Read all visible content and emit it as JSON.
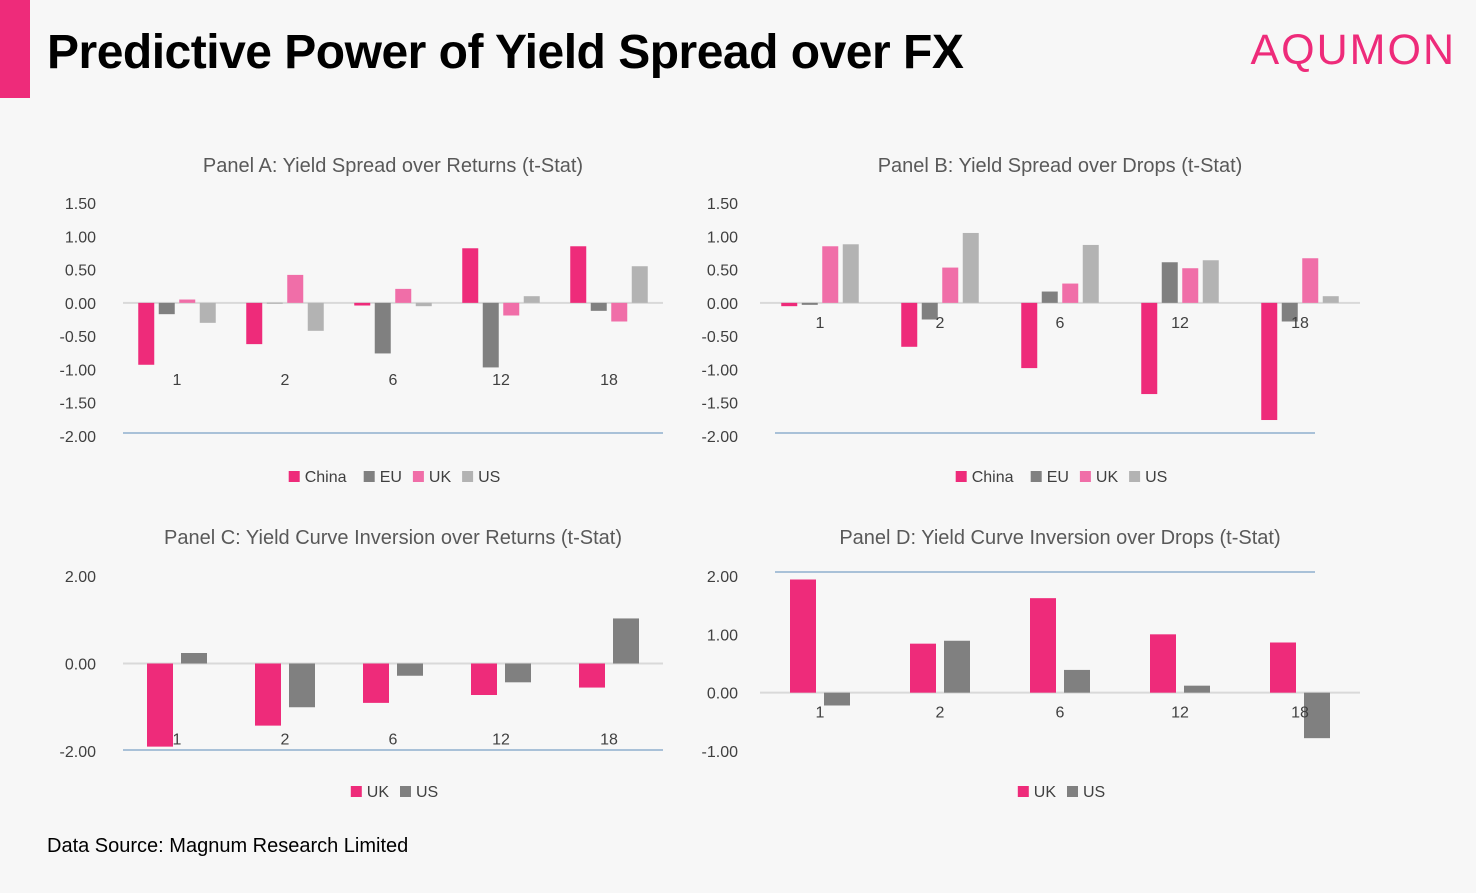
{
  "header": {
    "title": "Predictive Power of Yield Spread over FX",
    "brand": "AQUMON"
  },
  "footer": {
    "source": "Data Source: Magnum Research Limited"
  },
  "colors": {
    "accent": "#ee2b7a",
    "China": "#ee2b7a",
    "EU": "#808080",
    "UK": "#f06ea8",
    "US": "#b3b3b3",
    "UK_inversion": "#ee2b7a",
    "US_inversion": "#808080",
    "axis": "#d9d9d9",
    "bottom_line": "#5b8bb8"
  },
  "chart_data": [
    {
      "type": "bar",
      "title": "Panel A: Yield Spread over Returns (t-Stat)",
      "categories": [
        "1",
        "2",
        "6",
        "12",
        "18"
      ],
      "ylim": [
        -2.0,
        1.5
      ],
      "yticks": [
        "1.50",
        "1.00",
        "0.50",
        "0.00",
        "-0.50",
        "-1.00",
        "-1.50",
        "-2.00"
      ],
      "legend_position": "bottom",
      "series": [
        {
          "name": "China",
          "values": [
            -0.93,
            -0.62,
            -0.04,
            0.82,
            0.85
          ]
        },
        {
          "name": "EU",
          "values": [
            -0.17,
            0.0,
            -0.76,
            -0.97,
            -0.12
          ]
        },
        {
          "name": "UK",
          "values": [
            0.05,
            0.42,
            0.21,
            -0.19,
            -0.28
          ]
        },
        {
          "name": "US",
          "values": [
            -0.3,
            -0.42,
            -0.05,
            0.1,
            0.55
          ]
        }
      ]
    },
    {
      "type": "bar",
      "title": "Panel B: Yield Spread over Drops (t-Stat)",
      "categories": [
        "1",
        "2",
        "6",
        "12",
        "18"
      ],
      "ylim": [
        -2.0,
        1.5
      ],
      "yticks": [
        "1.50",
        "1.00",
        "0.50",
        "0.00",
        "-0.50",
        "-1.00",
        "-1.50",
        "-2.00"
      ],
      "legend_position": "bottom",
      "series": [
        {
          "name": "China",
          "values": [
            -0.05,
            -0.66,
            -0.98,
            -1.37,
            -1.76
          ]
        },
        {
          "name": "EU",
          "values": [
            -0.03,
            -0.25,
            0.17,
            0.61,
            -0.28
          ]
        },
        {
          "name": "UK",
          "values": [
            0.85,
            0.53,
            0.29,
            0.52,
            0.67
          ]
        },
        {
          "name": "US",
          "values": [
            0.88,
            1.05,
            0.87,
            0.64,
            0.1
          ]
        }
      ]
    },
    {
      "type": "bar",
      "title": "Panel C: Yield Curve Inversion over Returns (t-Stat)",
      "categories": [
        "1",
        "2",
        "6",
        "12",
        "18"
      ],
      "ylim": [
        -2.0,
        2.0
      ],
      "yticks": [
        "2.00",
        "0.00",
        "-2.00"
      ],
      "legend_position": "bottom",
      "series": [
        {
          "name": "UK",
          "values": [
            -1.9,
            -1.42,
            -0.9,
            -0.72,
            -0.55
          ]
        },
        {
          "name": "US",
          "values": [
            0.24,
            -1.0,
            -0.28,
            -0.43,
            1.03
          ]
        }
      ]
    },
    {
      "type": "bar",
      "title": "Panel D: Yield Curve Inversion over Drops (t-Stat)",
      "categories": [
        "1",
        "2",
        "6",
        "12",
        "18"
      ],
      "ylim": [
        -1.0,
        2.0
      ],
      "yticks": [
        "2.00",
        "1.00",
        "0.00",
        "-1.00"
      ],
      "legend_position": "bottom",
      "series": [
        {
          "name": "UK",
          "values": [
            1.94,
            0.84,
            1.62,
            1.0,
            0.86
          ]
        },
        {
          "name": "US",
          "values": [
            -0.22,
            0.89,
            0.39,
            0.12,
            -0.78
          ]
        }
      ]
    }
  ]
}
